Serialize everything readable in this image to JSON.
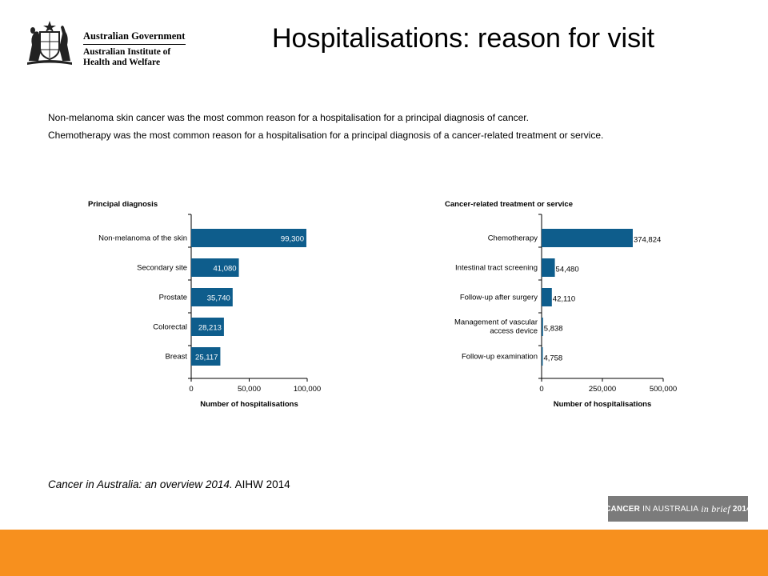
{
  "header": {
    "logo_line1": "Australian Government",
    "logo_line2": "Australian Institute of",
    "logo_line3": "Health and Welfare",
    "title": "Hospitalisations: reason for visit"
  },
  "intro": {
    "line1": "Non-melanoma skin cancer was the most common reason for a hospitalisation for a principal diagnosis of cancer.",
    "line2": "Chemotherapy was the most common reason for a hospitalisation for a principal diagnosis of a cancer-related treatment or service."
  },
  "chart_data": [
    {
      "type": "bar",
      "orientation": "horizontal",
      "title": "Principal diagnosis",
      "xlabel": "Number of hospitalisations",
      "ylabel": "",
      "categories": [
        "Non-melanoma of the skin",
        "Secondary site",
        "Prostate",
        "Colorectal",
        "Breast"
      ],
      "values": [
        99300,
        41080,
        35740,
        28213,
        25117
      ],
      "data_labels": [
        "99,300",
        "41,080",
        "35,740",
        "28,213",
        "25,117"
      ],
      "label_position": "inside",
      "xlim": [
        0,
        100000
      ],
      "xticks": [
        0,
        50000,
        100000
      ],
      "xtick_labels": [
        "0",
        "50,000",
        "100,000"
      ],
      "grid": false,
      "bar_color": "#0e5d8c"
    },
    {
      "type": "bar",
      "orientation": "horizontal",
      "title": "Cancer-related treatment or service",
      "xlabel": "Number of hospitalisations",
      "ylabel": "",
      "categories": [
        "Chemotherapy",
        "Intestinal tract screening",
        "Follow-up after surgery",
        "Management of vascular access device",
        "Follow-up examination"
      ],
      "category_lines": [
        [
          "Chemotherapy"
        ],
        [
          "Intestinal tract screening"
        ],
        [
          "Follow-up after surgery"
        ],
        [
          "Management of vascular",
          "access device"
        ],
        [
          "Follow-up examination"
        ]
      ],
      "values": [
        374824,
        54480,
        42110,
        5838,
        4758
      ],
      "data_labels": [
        "374,824",
        "54,480",
        "42,110",
        "5,838",
        "4,758"
      ],
      "label_position": "outside",
      "xlim": [
        0,
        500000
      ],
      "xticks": [
        0,
        250000,
        500000
      ],
      "xtick_labels": [
        "0",
        "250,000",
        "500,000"
      ],
      "grid": false,
      "bar_color": "#0e5d8c"
    }
  ],
  "citation": {
    "italic": "Cancer in Australia: an overview 2014.",
    "rest": " AIHW 2014"
  },
  "badge": {
    "part1": "CANCER",
    "part2": "IN AUSTRALIA",
    "part3": "in brief",
    "part4": "2014"
  },
  "colors": {
    "bar": "#0e5d8c",
    "footer": "#f7901e",
    "badge": "#7b7b7b"
  }
}
